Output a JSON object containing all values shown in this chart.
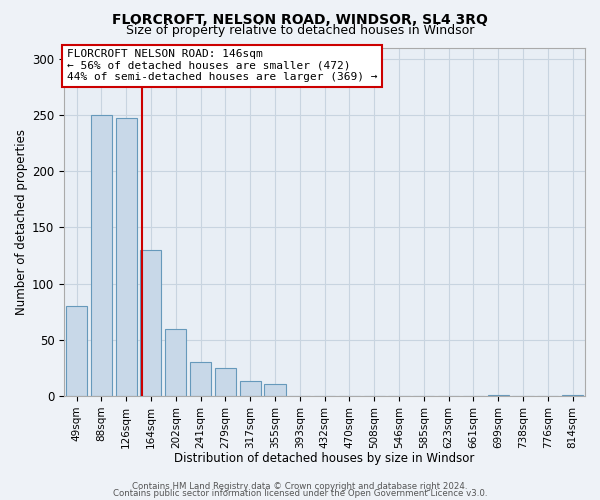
{
  "title": "FLORCROFT, NELSON ROAD, WINDSOR, SL4 3RQ",
  "subtitle": "Size of property relative to detached houses in Windsor",
  "xlabel": "Distribution of detached houses by size in Windsor",
  "ylabel": "Number of detached properties",
  "bar_color": "#c8d8e8",
  "bar_edge_color": "#6699bb",
  "categories": [
    "49sqm",
    "88sqm",
    "126sqm",
    "164sqm",
    "202sqm",
    "241sqm",
    "279sqm",
    "317sqm",
    "355sqm",
    "393sqm",
    "432sqm",
    "470sqm",
    "508sqm",
    "546sqm",
    "585sqm",
    "623sqm",
    "661sqm",
    "699sqm",
    "738sqm",
    "776sqm",
    "814sqm"
  ],
  "values": [
    80,
    250,
    247,
    130,
    60,
    30,
    25,
    13,
    11,
    0,
    0,
    0,
    0,
    0,
    0,
    0,
    0,
    1,
    0,
    0,
    1
  ],
  "ylim": [
    0,
    310
  ],
  "yticks": [
    0,
    50,
    100,
    150,
    200,
    250,
    300
  ],
  "vline_x": 2.65,
  "vline_color": "#cc0000",
  "annotation_box_text": "FLORCROFT NELSON ROAD: 146sqm\n← 56% of detached houses are smaller (472)\n44% of semi-detached houses are larger (369) →",
  "footer_line1": "Contains HM Land Registry data © Crown copyright and database right 2024.",
  "footer_line2": "Contains public sector information licensed under the Open Government Licence v3.0.",
  "background_color": "#eef2f7",
  "plot_background_color": "#e8eef5",
  "grid_color": "#c8d4e0"
}
